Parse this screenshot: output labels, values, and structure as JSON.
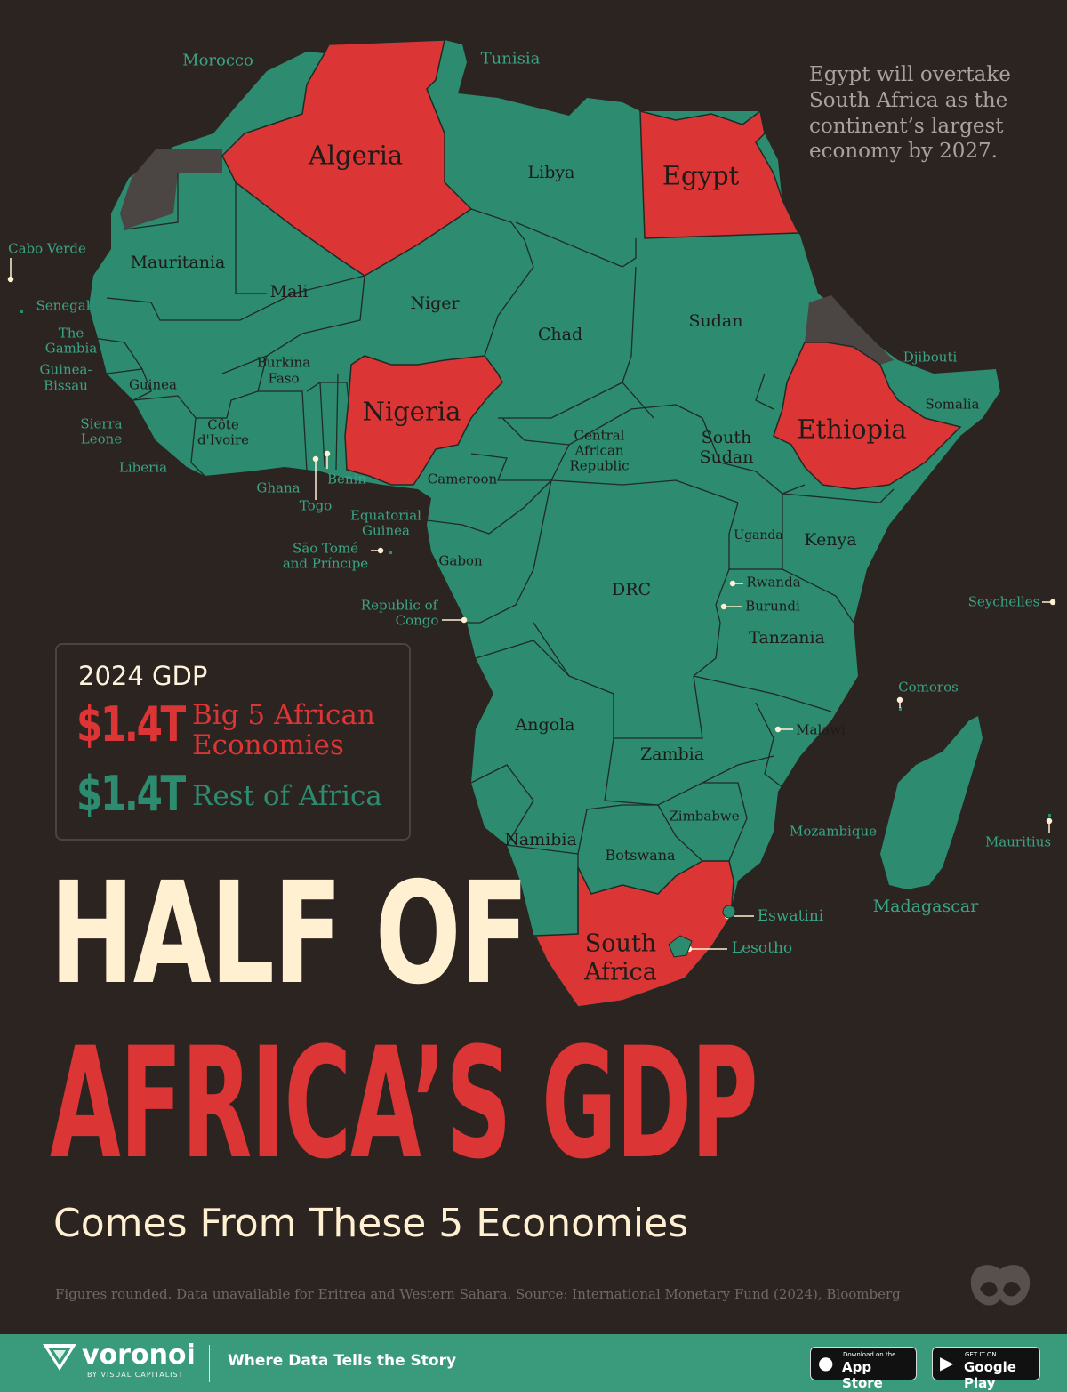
{
  "note": "Egypt will overtake South Africa as the continent’s largest economy by 2027.",
  "colors": {
    "background": "#2b2421",
    "big5": "#dc3535",
    "rest": "#2d8b70",
    "nodata": "#4b4544",
    "border": "#1f2b25",
    "cream": "#fff0d2"
  },
  "countries": {
    "big5": [
      "Algeria",
      "Egypt",
      "Nigeria",
      "Ethiopia",
      "South Africa"
    ],
    "no_data": [
      "Eritrea",
      "Western Sahara"
    ],
    "labels": {
      "morocco": "Morocco",
      "tunisia": "Tunisia",
      "algeria": "Algeria",
      "libya": "Libya",
      "egypt": "Egypt",
      "cabo_verde": "Cabo Verde",
      "mauritania": "Mauritania",
      "mali": "Mali",
      "niger": "Niger",
      "chad": "Chad",
      "sudan": "Sudan",
      "senegal": "Senegal",
      "gambia": "The Gambia",
      "guinea_bissau": "Guinea-Bissau",
      "guinea": "Guinea",
      "burkina_faso": "Burkina Faso",
      "nigeria": "Nigeria",
      "djibouti": "Djibouti",
      "ethiopia": "Ethiopia",
      "somalia": "Somalia",
      "sierra_leone": "Sierra Leone",
      "cote_divoire": "Côte d'Ivoire",
      "liberia": "Liberia",
      "ghana": "Ghana",
      "togo": "Togo",
      "benin": "Benin",
      "cameroon": "Cameroon",
      "car": "Central African Republic",
      "south_sudan": "South Sudan",
      "equatorial_guinea": "Equatorial Guinea",
      "sao_tome": "São Tomé and Príncipe",
      "gabon": "Gabon",
      "uganda": "Uganda",
      "kenya": "Kenya",
      "drc": "DRC",
      "rwanda": "Rwanda",
      "burundi": "Burundi",
      "republic_of_congo": "Republic of Congo",
      "seychelles": "Seychelles",
      "tanzania": "Tanzania",
      "comoros": "Comoros",
      "angola": "Angola",
      "malawi": "Malawi",
      "zambia": "Zambia",
      "zimbabwe": "Zimbabwe",
      "mozambique": "Mozambique",
      "mauritius": "Mauritius",
      "namibia": "Namibia",
      "botswana": "Botswana",
      "madagascar": "Madagascar",
      "eswatini": "Eswatini",
      "south_africa": "South Africa",
      "lesotho": "Lesotho"
    }
  },
  "legend": {
    "title": "2024 GDP",
    "big5_value": "$1.4T",
    "big5_label": "Big 5 African Economies",
    "rest_value": "$1.4T",
    "rest_label": "Rest of Africa"
  },
  "headline": {
    "line1": "HALF OF",
    "line2": "AFRICA’S GDP",
    "subtitle": "Comes From These 5 Economies"
  },
  "footnote": "Figures rounded. Data unavailable for Eritrea and Western Sahara. Source: International Monetary Fund (2024), Bloomberg",
  "footer": {
    "brand": "voronoi",
    "brand_sub": "BY VISUAL CAPITALIST",
    "tagline": "Where Data Tells the Story",
    "app_store_small": "Download on the",
    "app_store": "App Store",
    "google_play_small": "GET IT ON",
    "google_play": "Google Play"
  }
}
